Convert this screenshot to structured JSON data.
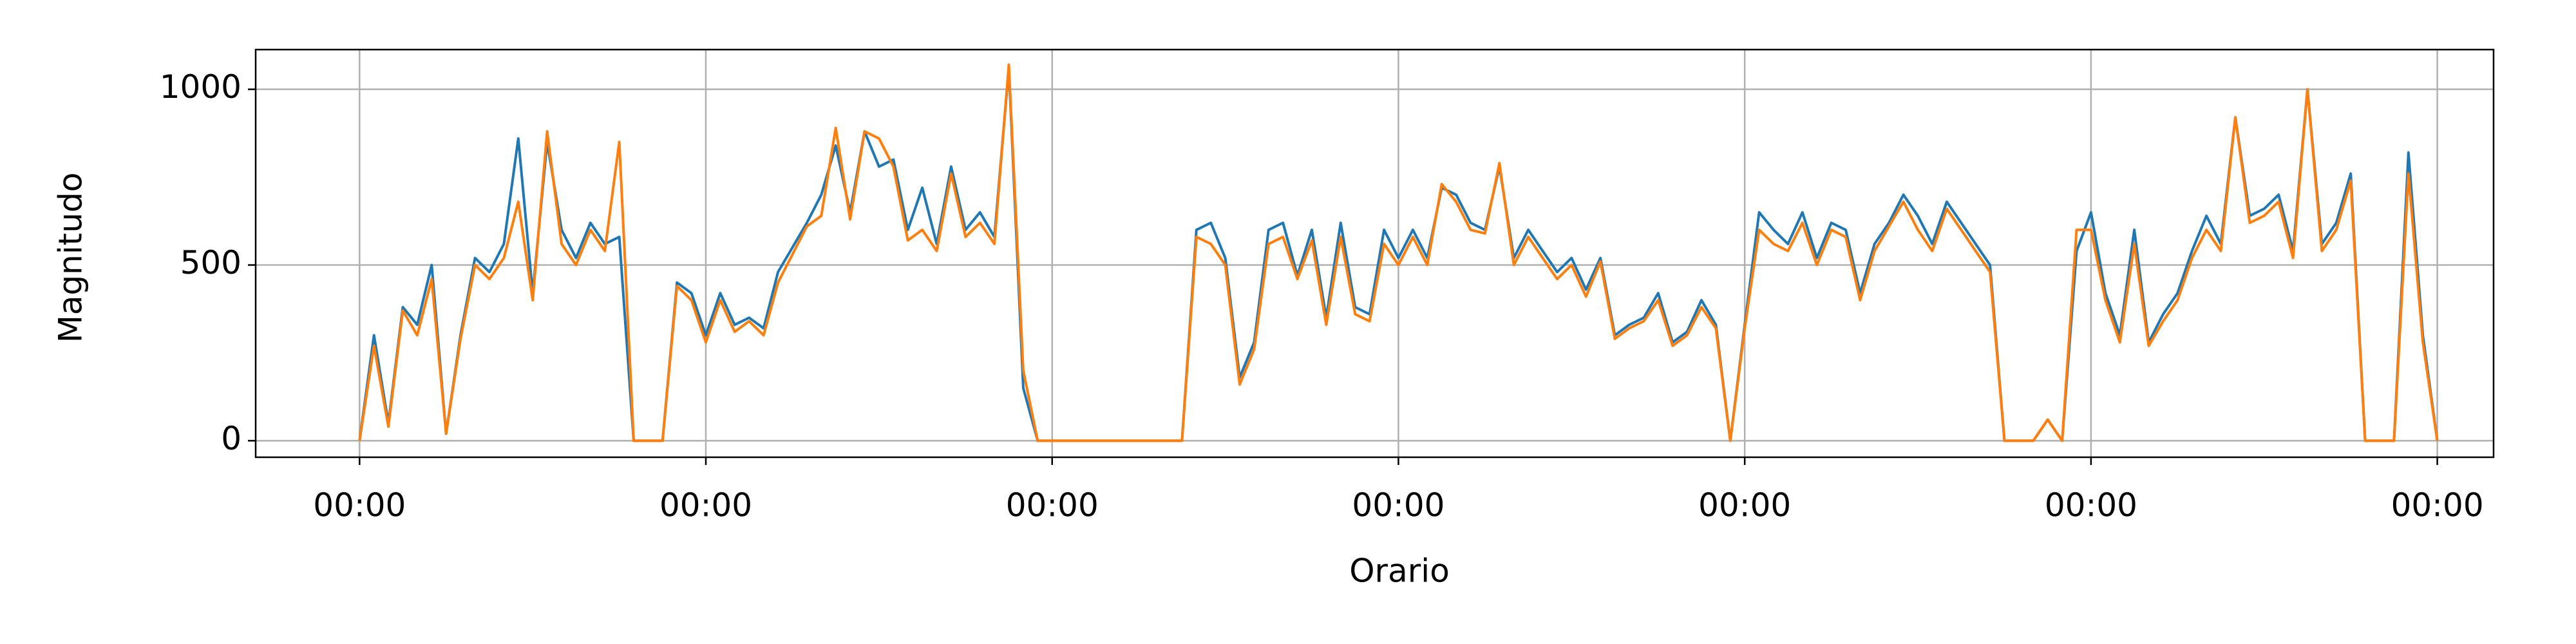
{
  "chart_data": {
    "type": "line",
    "xlabel": "Orario",
    "ylabel": "Magnitudo",
    "x": [
      0,
      1,
      2,
      3,
      4,
      5,
      6,
      7,
      8,
      9,
      10,
      11,
      12,
      13,
      14,
      15,
      16,
      17,
      18,
      19,
      20,
      21,
      22,
      23,
      24,
      25,
      26,
      27,
      28,
      29,
      30,
      31,
      32,
      33,
      34,
      35,
      36,
      37,
      38,
      39,
      40,
      41,
      42,
      43,
      44,
      45,
      46,
      47,
      48,
      49,
      50,
      51,
      52,
      53,
      54,
      55,
      56,
      57,
      58,
      59,
      60,
      61,
      62,
      63,
      64,
      65,
      66,
      67,
      68,
      69,
      70,
      71,
      72,
      73,
      74,
      75,
      76,
      77,
      78,
      79,
      80,
      81,
      82,
      83,
      84,
      85,
      86,
      87,
      88,
      89,
      90,
      91,
      92,
      93,
      94,
      95,
      96,
      97,
      98,
      99,
      100,
      101,
      102,
      103,
      104,
      105,
      106,
      107,
      108,
      109,
      110,
      111,
      112,
      113,
      114,
      115,
      116,
      117,
      118,
      119,
      120,
      121,
      122,
      123,
      124,
      125,
      126,
      127,
      128,
      129,
      130,
      131,
      132,
      133,
      134,
      135,
      136,
      137,
      138,
      139,
      140,
      141,
      142,
      143,
      144
    ],
    "series": [
      {
        "color": "#1f77b4",
        "values": [
          0,
          300,
          50,
          380,
          330,
          500,
          20,
          300,
          520,
          480,
          560,
          860,
          420,
          850,
          600,
          520,
          620,
          560,
          580,
          0,
          0,
          0,
          450,
          420,
          300,
          420,
          330,
          350,
          320,
          480,
          550,
          620,
          700,
          840,
          650,
          880,
          780,
          800,
          600,
          720,
          560,
          780,
          600,
          650,
          580,
          1060,
          150,
          0,
          0,
          0,
          0,
          0,
          0,
          0,
          0,
          0,
          0,
          0,
          600,
          620,
          520,
          180,
          280,
          600,
          620,
          470,
          600,
          350,
          620,
          380,
          360,
          600,
          520,
          600,
          520,
          720,
          700,
          620,
          600,
          780,
          520,
          600,
          540,
          480,
          520,
          430,
          520,
          300,
          330,
          350,
          420,
          280,
          310,
          400,
          330,
          0,
          330,
          650,
          600,
          560,
          650,
          520,
          620,
          600,
          420,
          560,
          620,
          700,
          640,
          560,
          680,
          620,
          560,
          500,
          0,
          0,
          0,
          60,
          0,
          540,
          650,
          420,
          300,
          600,
          280,
          360,
          420,
          540,
          640,
          560,
          920,
          640,
          660,
          700,
          540,
          1000,
          560,
          620,
          760,
          0,
          0,
          0,
          820,
          300,
          0
        ]
      },
      {
        "color": "#ff7f0e",
        "values": [
          0,
          270,
          40,
          370,
          300,
          460,
          20,
          290,
          500,
          460,
          520,
          680,
          400,
          880,
          560,
          500,
          600,
          540,
          850,
          0,
          0,
          0,
          440,
          400,
          280,
          400,
          310,
          340,
          300,
          450,
          530,
          610,
          640,
          890,
          630,
          880,
          860,
          780,
          570,
          600,
          540,
          760,
          580,
          620,
          560,
          1070,
          200,
          0,
          0,
          0,
          0,
          0,
          0,
          0,
          0,
          0,
          0,
          0,
          580,
          560,
          500,
          160,
          260,
          560,
          580,
          460,
          570,
          330,
          580,
          360,
          340,
          560,
          500,
          580,
          500,
          730,
          680,
          600,
          590,
          790,
          500,
          580,
          520,
          460,
          500,
          410,
          510,
          290,
          320,
          340,
          400,
          270,
          300,
          380,
          320,
          0,
          320,
          600,
          560,
          540,
          620,
          500,
          600,
          580,
          400,
          540,
          610,
          680,
          600,
          540,
          660,
          600,
          540,
          480,
          0,
          0,
          0,
          60,
          0,
          600,
          600,
          400,
          280,
          560,
          270,
          340,
          400,
          520,
          600,
          540,
          920,
          620,
          640,
          680,
          520,
          1000,
          540,
          600,
          740,
          0,
          0,
          0,
          760,
          280,
          0
        ]
      }
    ],
    "xlim": [
      -7.2,
      147.9
    ],
    "ylim": [
      -47,
      1113
    ],
    "xticks": [
      {
        "value": 0,
        "label": "00:00"
      },
      {
        "value": 24,
        "label": "00:00"
      },
      {
        "value": 48,
        "label": "00:00"
      },
      {
        "value": 72,
        "label": "00:00"
      },
      {
        "value": 96,
        "label": "00:00"
      },
      {
        "value": 120,
        "label": "00:00"
      },
      {
        "value": 144,
        "label": "00:00"
      }
    ],
    "yticks": [
      0,
      500,
      1000
    ],
    "grid": true
  }
}
